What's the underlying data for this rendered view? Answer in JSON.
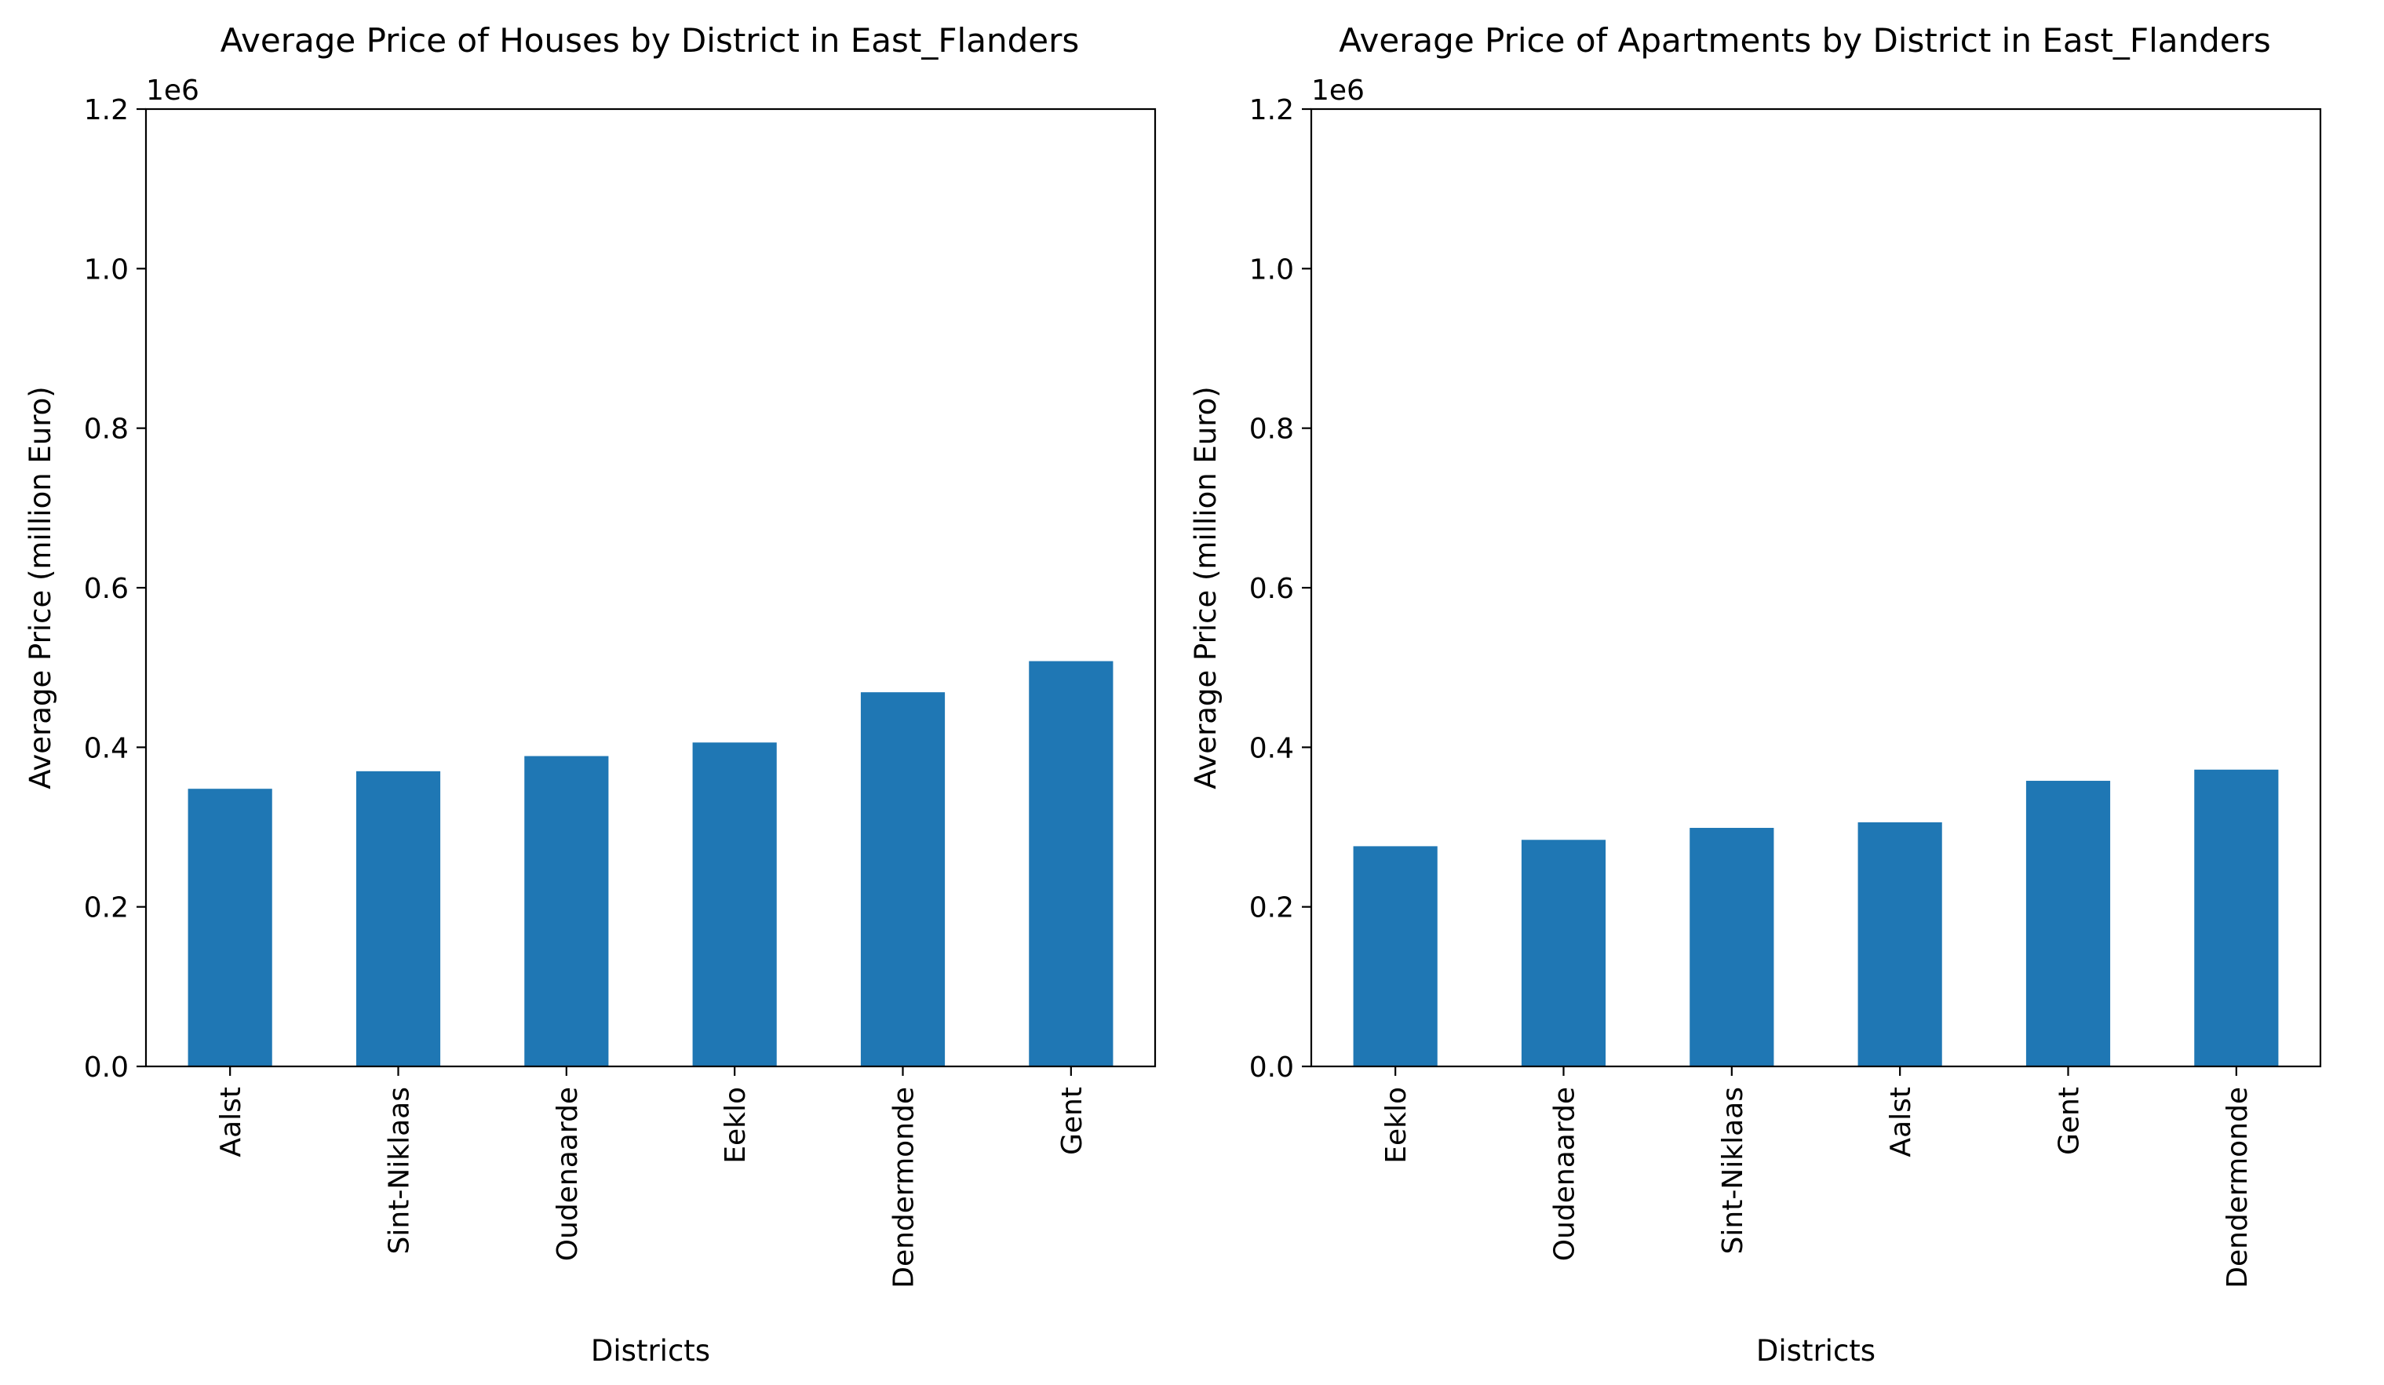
{
  "chart_data": [
    {
      "type": "bar",
      "title": "Average Price of Houses by District in East_Flanders",
      "xlabel": "Districts",
      "ylabel": "Average Price (million Euro)",
      "y_offset_label": "1e6",
      "ylim": [
        0,
        1.2
      ],
      "yticks": [
        0.0,
        0.2,
        0.4,
        0.6,
        0.8,
        1.0,
        1.2
      ],
      "ytick_labels": [
        "0.0",
        "0.2",
        "0.4",
        "0.6",
        "0.8",
        "1.0",
        "1.2"
      ],
      "categories": [
        "Aalst",
        "Sint-Niklaas",
        "Oudenaarde",
        "Eeklo",
        "Dendermonde",
        "Gent"
      ],
      "values": [
        0.348,
        0.37,
        0.389,
        0.406,
        0.469,
        0.508
      ],
      "bar_color": "#1f77b4",
      "grid": false,
      "legend": "none"
    },
    {
      "type": "bar",
      "title": "Average Price of Apartments by District in East_Flanders",
      "xlabel": "Districts",
      "ylabel": "Average Price (million Euro)",
      "y_offset_label": "1e6",
      "ylim": [
        0,
        1.2
      ],
      "yticks": [
        0.0,
        0.2,
        0.4,
        0.6,
        0.8,
        1.0,
        1.2
      ],
      "ytick_labels": [
        "0.0",
        "0.2",
        "0.4",
        "0.6",
        "0.8",
        "1.0",
        "1.2"
      ],
      "categories": [
        "Eeklo",
        "Oudenaarde",
        "Sint-Niklaas",
        "Aalst",
        "Gent",
        "Dendermonde"
      ],
      "values": [
        0.276,
        0.284,
        0.299,
        0.306,
        0.358,
        0.372
      ],
      "bar_color": "#1f77b4",
      "grid": false,
      "legend": "none"
    }
  ]
}
